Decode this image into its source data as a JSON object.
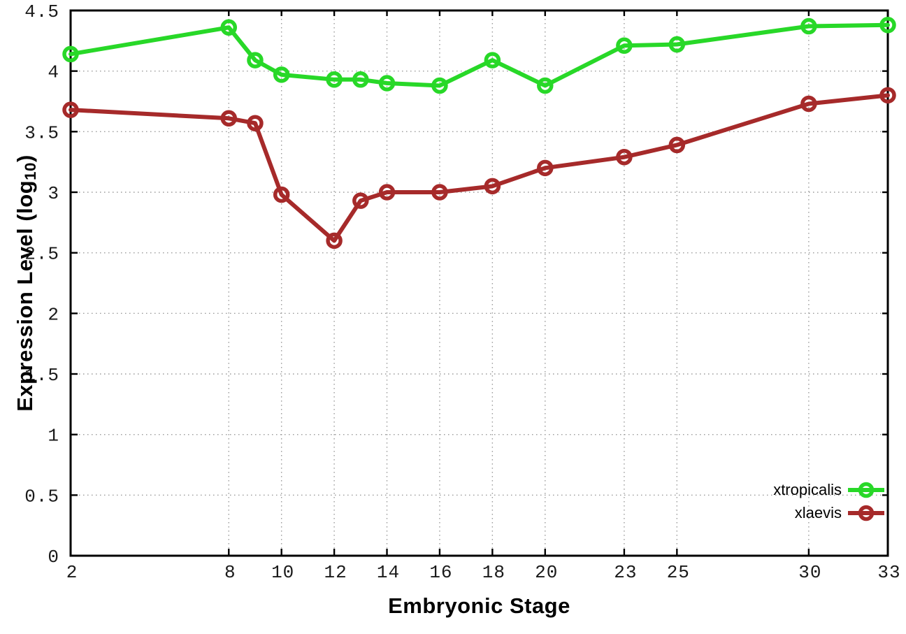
{
  "labels": {
    "xlabel": "Embryonic Stage",
    "ylabel_prefix": "Expression Level (log",
    "ylabel_sub": "10",
    "ylabel_suffix": ")"
  },
  "colors": {
    "axis": "#000000",
    "grid": "#9a9a9a",
    "background": "#ffffff",
    "text": "#000000"
  },
  "chart_data": {
    "type": "line",
    "title": "",
    "xlabel": "Embryonic Stage",
    "ylabel": "Expression Level (log10)",
    "x": [
      2,
      8,
      9,
      10,
      12,
      13,
      14,
      16,
      18,
      20,
      23,
      25,
      30,
      33
    ],
    "series": [
      {
        "name": "xtropicalis",
        "color": "#28d828",
        "values": [
          4.14,
          4.36,
          4.09,
          3.97,
          3.93,
          3.93,
          3.9,
          3.88,
          4.09,
          3.88,
          4.21,
          4.22,
          4.37,
          4.38
        ]
      },
      {
        "name": "xlaevis",
        "color": "#a62a2a",
        "values": [
          3.68,
          3.61,
          3.57,
          2.98,
          2.6,
          2.93,
          3.0,
          3.0,
          3.05,
          3.2,
          3.29,
          3.39,
          3.73,
          3.8
        ]
      }
    ],
    "xlim": [
      2,
      33
    ],
    "ylim": [
      0,
      4.5
    ],
    "x_ticks": [
      2,
      8,
      10,
      12,
      14,
      16,
      18,
      20,
      23,
      25,
      30,
      33
    ],
    "y_ticks": [
      0,
      0.5,
      1,
      1.5,
      2,
      2.5,
      3,
      3.5,
      4,
      4.5
    ],
    "grid": true,
    "grid_style": "dotted",
    "marker": "open-circle",
    "legend_position": "bottom-right"
  }
}
